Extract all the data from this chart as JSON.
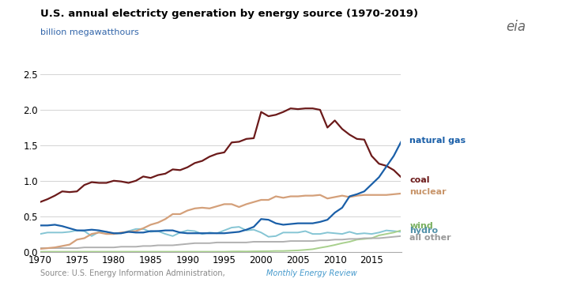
{
  "title": "U.S. annual electricty generation by energy source (1970-2019)",
  "ylabel": "billion megawatthours",
  "source_plain": "Source: U.S. Energy Information Administration, ",
  "source_italic": "Monthly Energy Review",
  "years": [
    1970,
    1971,
    1972,
    1973,
    1974,
    1975,
    1976,
    1977,
    1978,
    1979,
    1980,
    1981,
    1982,
    1983,
    1984,
    1985,
    1986,
    1987,
    1988,
    1989,
    1990,
    1991,
    1992,
    1993,
    1994,
    1995,
    1996,
    1997,
    1998,
    1999,
    2000,
    2001,
    2002,
    2003,
    2004,
    2005,
    2006,
    2007,
    2008,
    2009,
    2010,
    2011,
    2012,
    2013,
    2014,
    2015,
    2016,
    2017,
    2018,
    2019
  ],
  "coal": [
    0.7,
    0.74,
    0.79,
    0.85,
    0.84,
    0.85,
    0.94,
    0.98,
    0.97,
    0.97,
    1.0,
    0.99,
    0.97,
    1.0,
    1.06,
    1.04,
    1.08,
    1.1,
    1.16,
    1.15,
    1.19,
    1.25,
    1.28,
    1.34,
    1.38,
    1.4,
    1.54,
    1.55,
    1.59,
    1.6,
    1.97,
    1.91,
    1.93,
    1.97,
    2.02,
    2.01,
    2.02,
    2.02,
    2.0,
    1.75,
    1.85,
    1.73,
    1.65,
    1.59,
    1.58,
    1.35,
    1.24,
    1.21,
    1.15,
    1.05
  ],
  "natural_gas": [
    0.37,
    0.37,
    0.38,
    0.36,
    0.33,
    0.3,
    0.3,
    0.31,
    0.3,
    0.28,
    0.26,
    0.26,
    0.28,
    0.27,
    0.27,
    0.29,
    0.29,
    0.3,
    0.3,
    0.27,
    0.26,
    0.26,
    0.26,
    0.26,
    0.26,
    0.26,
    0.27,
    0.28,
    0.31,
    0.35,
    0.46,
    0.45,
    0.4,
    0.38,
    0.39,
    0.4,
    0.4,
    0.4,
    0.42,
    0.45,
    0.55,
    0.62,
    0.78,
    0.81,
    0.85,
    0.95,
    1.05,
    1.2,
    1.35,
    1.55
  ],
  "nuclear": [
    0.04,
    0.05,
    0.06,
    0.08,
    0.1,
    0.17,
    0.19,
    0.25,
    0.27,
    0.25,
    0.25,
    0.27,
    0.28,
    0.29,
    0.33,
    0.38,
    0.41,
    0.46,
    0.53,
    0.53,
    0.58,
    0.61,
    0.62,
    0.61,
    0.64,
    0.67,
    0.67,
    0.63,
    0.67,
    0.7,
    0.73,
    0.73,
    0.78,
    0.76,
    0.78,
    0.78,
    0.79,
    0.79,
    0.8,
    0.75,
    0.77,
    0.79,
    0.77,
    0.79,
    0.8,
    0.8,
    0.8,
    0.8,
    0.81,
    0.82
  ],
  "hydro": [
    0.25,
    0.27,
    0.27,
    0.27,
    0.28,
    0.3,
    0.29,
    0.22,
    0.28,
    0.28,
    0.25,
    0.26,
    0.29,
    0.32,
    0.32,
    0.28,
    0.29,
    0.25,
    0.22,
    0.27,
    0.3,
    0.29,
    0.25,
    0.27,
    0.26,
    0.3,
    0.34,
    0.35,
    0.3,
    0.31,
    0.27,
    0.21,
    0.22,
    0.27,
    0.27,
    0.27,
    0.29,
    0.25,
    0.25,
    0.27,
    0.26,
    0.25,
    0.28,
    0.25,
    0.26,
    0.25,
    0.27,
    0.3,
    0.29,
    0.28
  ],
  "wind": [
    0.0,
    0.0,
    0.0,
    0.0,
    0.0,
    0.0,
    0.0,
    0.0,
    0.0,
    0.0,
    0.0,
    0.0,
    0.0,
    0.0,
    0.0,
    0.0,
    0.0,
    0.0,
    0.0,
    0.0,
    0.0,
    0.0,
    0.0,
    0.0,
    0.0,
    0.0,
    0.003,
    0.004,
    0.003,
    0.005,
    0.006,
    0.007,
    0.01,
    0.01,
    0.014,
    0.018,
    0.026,
    0.035,
    0.055,
    0.073,
    0.095,
    0.12,
    0.14,
    0.17,
    0.18,
    0.19,
    0.23,
    0.25,
    0.27,
    0.3
  ],
  "all_other": [
    0.05,
    0.05,
    0.05,
    0.05,
    0.05,
    0.05,
    0.06,
    0.06,
    0.06,
    0.06,
    0.06,
    0.07,
    0.07,
    0.07,
    0.08,
    0.08,
    0.09,
    0.09,
    0.09,
    0.1,
    0.11,
    0.12,
    0.12,
    0.12,
    0.13,
    0.13,
    0.13,
    0.13,
    0.13,
    0.14,
    0.14,
    0.14,
    0.14,
    0.14,
    0.15,
    0.15,
    0.15,
    0.15,
    0.16,
    0.16,
    0.17,
    0.17,
    0.18,
    0.18,
    0.19,
    0.19,
    0.19,
    0.2,
    0.21,
    0.22
  ],
  "coal_color": "#6b1a1a",
  "natural_gas_color": "#1a5fa8",
  "nuclear_color": "#d4a07a",
  "hydro_color": "#85c5d4",
  "wind_color": "#a8d08d",
  "all_other_color": "#b0b0b0",
  "bg_color": "#ffffff",
  "ylim": [
    0,
    2.5
  ],
  "yticks": [
    0.0,
    0.5,
    1.0,
    1.5,
    2.0,
    2.5
  ],
  "xlim": [
    1970,
    2019
  ],
  "xticks": [
    1970,
    1975,
    1980,
    1985,
    1990,
    1995,
    2000,
    2005,
    2010,
    2015
  ],
  "label_natural_gas": "natural gas",
  "label_coal": "coal",
  "label_nuclear": "nuclear",
  "label_wind": "wind",
  "label_hydro": "hydro",
  "label_all_other": "all other",
  "label_ng_color": "#1a5fa8",
  "label_coal_color": "#6b1a1a",
  "label_nuclear_color": "#c8956a",
  "label_wind_color": "#7ab060",
  "label_hydro_color": "#5090a8",
  "label_all_other_color": "#999999"
}
